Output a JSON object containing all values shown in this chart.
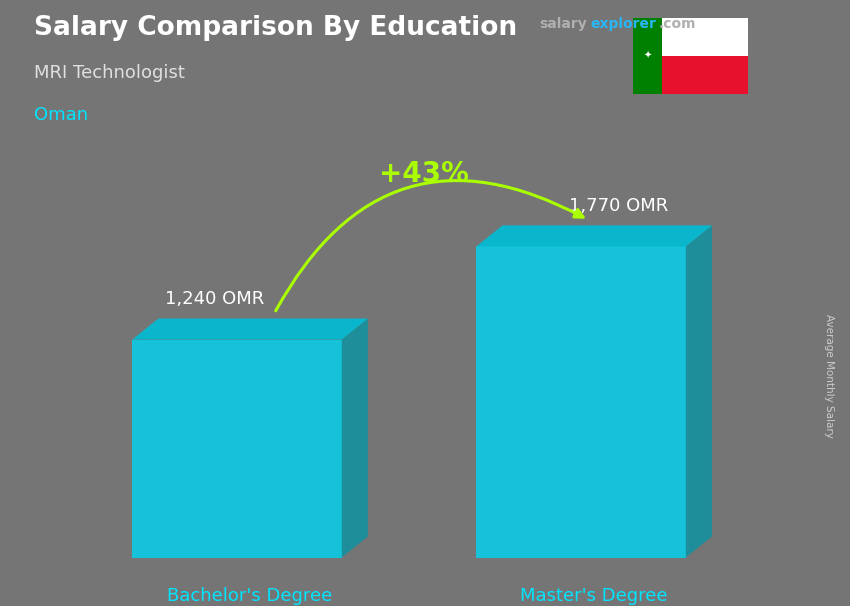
{
  "title": "Salary Comparison By Education",
  "subtitle": "MRI Technologist",
  "country": "Oman",
  "categories": [
    "Bachelor's Degree",
    "Master's Degree"
  ],
  "values": [
    1240,
    1770
  ],
  "value_labels": [
    "1,240 OMR",
    "1,770 OMR"
  ],
  "pct_change": "+43%",
  "bar_color_face": "#00D4F0",
  "bar_color_top": "#00BCD4",
  "bar_color_side": "#0097A7",
  "ylabel": "Average Monthly Salary",
  "background_color": "#757575",
  "title_color": "#ffffff",
  "subtitle_color": "#e0e0e0",
  "country_color": "#00e5ff",
  "category_color": "#00e5ff",
  "value_color": "#ffffff",
  "pct_color": "#aaff00",
  "arrow_color": "#aaff00",
  "ylim": [
    0,
    2000
  ]
}
